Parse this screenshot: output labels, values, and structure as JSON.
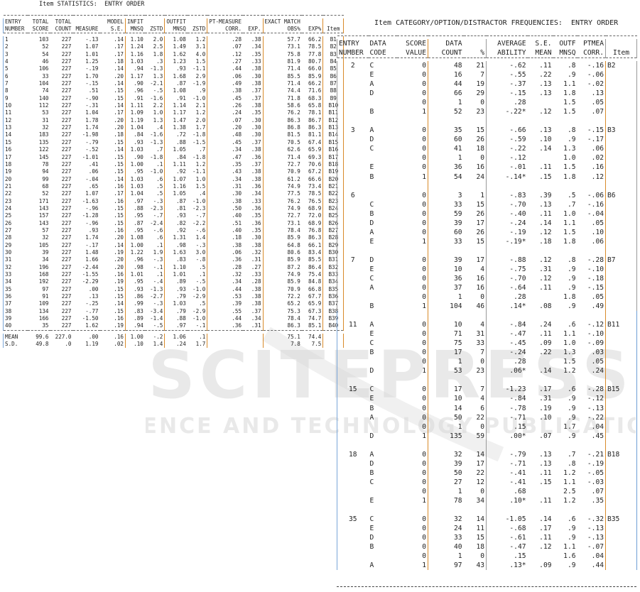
{
  "left": {
    "title": "Item STATISTICS:  ENTRY ORDER",
    "header1": [
      "ENTRY",
      "TOTAL",
      "TOTAL",
      "",
      "MODEL",
      "INFIT",
      "",
      "OUTFIT",
      "",
      "PT-MEASURE",
      "",
      "EXACT MATCH",
      "",
      ""
    ],
    "header2": [
      "NUMBER",
      "SCORE",
      "COUNT",
      "MEASURE",
      "S.E.",
      "MNSQ",
      "ZSTD",
      "MNSQ",
      "ZSTD",
      "CORR.",
      "EXP.",
      "OBS%",
      "EXP%",
      "Item"
    ],
    "rows": [
      [
        "1",
        "103",
        "227",
        "-.13",
        ".14",
        "1.10",
        "2.0",
        "1.08",
        "1.2",
        ".28",
        ".38",
        "57.7",
        "66.2",
        "B1"
      ],
      [
        "2",
        "52",
        "227",
        "1.07",
        ".17",
        "1.24",
        "2.5",
        "1.49",
        "3.1",
        ".07",
        ".34",
        "73.1",
        "78.5",
        "B2"
      ],
      [
        "3",
        "54",
        "227",
        "1.01",
        ".17",
        "1.16",
        "1.8",
        "1.62",
        "4.0",
        ".12",
        ".35",
        "75.8",
        "77.8",
        "B3"
      ],
      [
        "4",
        "46",
        "227",
        "1.25",
        ".18",
        "1.03",
        ".3",
        "1.23",
        "1.5",
        ".27",
        ".33",
        "81.9",
        "80.7",
        "B4"
      ],
      [
        "5",
        "106",
        "227",
        "-.19",
        ".14",
        ".94",
        "-1.3",
        ".93",
        "-1.1",
        ".44",
        ".38",
        "71.4",
        "66.0",
        "B5"
      ],
      [
        "6",
        "33",
        "227",
        "1.70",
        ".20",
        "1.17",
        "1.3",
        "1.68",
        "2.9",
        ".06",
        ".30",
        "85.5",
        "85.9",
        "B6"
      ],
      [
        "7",
        "104",
        "227",
        "-.15",
        ".14",
        ".90",
        "-2.1",
        ".87",
        "-1.9",
        ".49",
        ".38",
        "71.4",
        "66.2",
        "B7"
      ],
      [
        "8",
        "74",
        "227",
        ".51",
        ".15",
        ".96",
        "-.5",
        "1.08",
        ".9",
        ".38",
        ".37",
        "74.4",
        "71.6",
        "B8"
      ],
      [
        "9",
        "140",
        "227",
        "-.90",
        ".15",
        ".91",
        "-1.6",
        ".91",
        "-1.0",
        ".45",
        ".37",
        "71.8",
        "68.3",
        "B9"
      ],
      [
        "10",
        "112",
        "227",
        "-.31",
        ".14",
        "1.11",
        "2.2",
        "1.14",
        "2.1",
        ".26",
        ".38",
        "58.6",
        "65.8",
        "B10"
      ],
      [
        "11",
        "53",
        "227",
        "1.04",
        ".17",
        "1.09",
        "1.0",
        "1.17",
        "1.2",
        ".24",
        ".35",
        "76.2",
        "78.1",
        "B11"
      ],
      [
        "12",
        "31",
        "227",
        "1.78",
        ".20",
        "1.19",
        "1.3",
        "1.47",
        "2.0",
        ".07",
        ".30",
        "86.3",
        "86.7",
        "B12"
      ],
      [
        "13",
        "32",
        "227",
        "1.74",
        ".20",
        "1.04",
        ".4",
        "1.38",
        "1.7",
        ".20",
        ".30",
        "86.8",
        "86.3",
        "B13"
      ],
      [
        "14",
        "183",
        "227",
        "-1.98",
        ".18",
        ".84",
        "-1.6",
        ".72",
        "-1.8",
        ".48",
        ".30",
        "81.5",
        "81.1",
        "B14"
      ],
      [
        "15",
        "135",
        "227",
        "-.79",
        ".15",
        ".93",
        "-1.3",
        ".88",
        "-1.5",
        ".45",
        ".37",
        "70.5",
        "67.4",
        "B15"
      ],
      [
        "16",
        "122",
        "227",
        "-.52",
        ".14",
        "1.03",
        ".7",
        "1.05",
        ".7",
        ".34",
        ".38",
        "62.6",
        "65.9",
        "B16"
      ],
      [
        "17",
        "145",
        "227",
        "-1.01",
        ".15",
        ".90",
        "-1.8",
        ".84",
        "-1.8",
        ".47",
        ".36",
        "71.4",
        "69.3",
        "B17"
      ],
      [
        "18",
        "78",
        "227",
        ".41",
        ".15",
        "1.00",
        ".1",
        "1.11",
        "1.2",
        ".35",
        ".37",
        "72.7",
        "70.6",
        "B18"
      ],
      [
        "19",
        "94",
        "227",
        ".06",
        ".15",
        ".95",
        "-1.0",
        ".92",
        "-1.1",
        ".43",
        ".38",
        "70.9",
        "67.2",
        "B19"
      ],
      [
        "20",
        "99",
        "227",
        "-.04",
        ".14",
        "1.03",
        ".6",
        "1.07",
        "1.0",
        ".34",
        ".38",
        "61.2",
        "66.6",
        "B20"
      ],
      [
        "21",
        "68",
        "227",
        ".65",
        ".16",
        "1.03",
        ".5",
        "1.16",
        "1.5",
        ".31",
        ".36",
        "74.9",
        "73.4",
        "B21"
      ],
      [
        "22",
        "52",
        "227",
        "1.07",
        ".17",
        "1.04",
        ".5",
        "1.05",
        ".4",
        ".30",
        ".34",
        "77.5",
        "78.5",
        "B22"
      ],
      [
        "23",
        "171",
        "227",
        "-1.63",
        ".16",
        ".97",
        "-.3",
        ".87",
        "-1.0",
        ".38",
        ".33",
        "76.2",
        "76.5",
        "B23"
      ],
      [
        "24",
        "143",
        "227",
        "-.96",
        ".15",
        ".88",
        "-2.3",
        ".81",
        "-2.3",
        ".50",
        ".36",
        "74.9",
        "68.9",
        "B24"
      ],
      [
        "25",
        "157",
        "227",
        "-1.28",
        ".15",
        ".95",
        "-.7",
        ".93",
        "-.7",
        ".40",
        ".35",
        "72.7",
        "72.0",
        "B25"
      ],
      [
        "26",
        "143",
        "227",
        "-.96",
        ".15",
        ".87",
        "-2.4",
        ".82",
        "-2.2",
        ".51",
        ".36",
        "73.1",
        "68.9",
        "B26"
      ],
      [
        "27",
        "57",
        "227",
        ".93",
        ".16",
        ".95",
        "-.6",
        ".92",
        "-.6",
        ".40",
        ".35",
        "78.4",
        "76.8",
        "B27"
      ],
      [
        "28",
        "32",
        "227",
        "1.74",
        ".20",
        "1.08",
        ".6",
        "1.31",
        "1.4",
        ".18",
        ".30",
        "85.9",
        "86.3",
        "B28"
      ],
      [
        "29",
        "105",
        "227",
        "-.17",
        ".14",
        "1.00",
        ".1",
        ".98",
        "-.3",
        ".38",
        ".38",
        "64.8",
        "66.1",
        "B29"
      ],
      [
        "30",
        "39",
        "227",
        "1.48",
        ".19",
        "1.22",
        "1.9",
        "1.63",
        "3.0",
        ".06",
        ".32",
        "80.6",
        "83.4",
        "B30"
      ],
      [
        "31",
        "34",
        "227",
        "1.66",
        ".20",
        ".96",
        "-.3",
        ".83",
        "-.8",
        ".36",
        ".31",
        "85.9",
        "85.5",
        "B31"
      ],
      [
        "32",
        "196",
        "227",
        "-2.44",
        ".20",
        ".98",
        "-.1",
        "1.10",
        ".5",
        ".28",
        ".27",
        "87.2",
        "86.4",
        "B32"
      ],
      [
        "33",
        "168",
        "227",
        "-1.55",
        ".16",
        "1.01",
        ".1",
        "1.01",
        ".1",
        ".32",
        ".33",
        "74.9",
        "75.4",
        "B33"
      ],
      [
        "34",
        "192",
        "227",
        "-2.29",
        ".19",
        ".95",
        "-.4",
        ".89",
        "-.5",
        ".34",
        ".28",
        "85.9",
        "84.8",
        "B34"
      ],
      [
        "35",
        "97",
        "227",
        ".00",
        ".15",
        ".93",
        "-1.3",
        ".93",
        "-1.0",
        ".44",
        ".38",
        "70.9",
        "66.8",
        "B35"
      ],
      [
        "36",
        "91",
        "227",
        ".13",
        ".15",
        ".86",
        "-2.7",
        ".79",
        "-2.9",
        ".53",
        ".38",
        "72.2",
        "67.7",
        "B36"
      ],
      [
        "37",
        "109",
        "227",
        "-.25",
        ".14",
        ".99",
        "-.3",
        "1.03",
        ".5",
        ".39",
        ".38",
        "65.2",
        "65.9",
        "B37"
      ],
      [
        "38",
        "134",
        "227",
        "-.77",
        ".15",
        ".83",
        "-3.4",
        ".79",
        "-2.9",
        ".55",
        ".37",
        "75.3",
        "67.3",
        "B38"
      ],
      [
        "39",
        "166",
        "227",
        "-1.50",
        ".16",
        ".89",
        "-1.4",
        ".88",
        "-1.0",
        ".44",
        ".34",
        "78.4",
        "74.7",
        "B39"
      ],
      [
        "40",
        "35",
        "227",
        "1.62",
        ".19",
        ".94",
        "-.5",
        ".97",
        "-.1",
        ".36",
        ".31",
        "86.3",
        "85.1",
        "B40"
      ]
    ],
    "summary": [
      [
        "MEAN",
        "99.6",
        "227.0",
        ".00",
        ".16",
        "1.00",
        "-.2",
        "1.06",
        ".1",
        "",
        "",
        "75.1",
        "74.4",
        ""
      ],
      [
        "S.D.",
        "49.8",
        ".0",
        "1.19",
        ".02",
        ".10",
        "1.4",
        ".24",
        "1.7",
        "",
        "",
        "7.8",
        "7.5",
        ""
      ]
    ]
  },
  "right": {
    "title": "Item CATEGORY/OPTION/DISTRACTOR FREQUENCIES:  ENTRY ORDER",
    "header1": [
      "ENTRY",
      "DATA",
      "SCORE",
      "DATA",
      "",
      "AVERAGE",
      "S.E.",
      "OUTF",
      "PTMEA",
      ""
    ],
    "header2": [
      "NUMBER",
      "CODE",
      "VALUE",
      "COUNT",
      "%",
      "ABILITY",
      "MEAN",
      "MNSQ",
      "CORR.",
      "Item"
    ],
    "groups": [
      {
        "entry": "2",
        "item": "B2",
        "rows": [
          [
            "C",
            "0",
            "48",
            "21",
            "-.62",
            ".11",
            ".8",
            "-.16"
          ],
          [
            "E",
            "0",
            "16",
            "7",
            "-.55",
            ".22",
            ".9",
            "-.06"
          ],
          [
            "A",
            "0",
            "44",
            "19",
            "-.37",
            ".13",
            "1.1",
            "-.02"
          ],
          [
            "D",
            "0",
            "66",
            "29",
            "-.15",
            ".13",
            "1.8",
            ".13"
          ],
          [
            "",
            "0",
            "1",
            "0",
            ".28",
            "",
            "1.5",
            ".05"
          ],
          [
            "B",
            "1",
            "52",
            "23",
            "-.22*",
            ".12",
            "1.5",
            ".07"
          ]
        ]
      },
      {
        "entry": "3",
        "item": "B3",
        "rows": [
          [
            "A",
            "0",
            "35",
            "15",
            "-.66",
            ".13",
            ".8",
            "-.15"
          ],
          [
            "D",
            "0",
            "60",
            "26",
            "-.59",
            ".10",
            ".9",
            "-.17"
          ],
          [
            "C",
            "0",
            "41",
            "18",
            "-.22",
            ".14",
            "1.3",
            ".06"
          ],
          [
            "",
            "0",
            "1",
            "0",
            "-.12",
            "",
            "1.0",
            ".02"
          ],
          [
            "E",
            "0",
            "36",
            "16",
            "-.01",
            ".11",
            "1.5",
            ".16"
          ],
          [
            "B",
            "1",
            "54",
            "24",
            "-.14*",
            ".15",
            "1.8",
            ".12"
          ]
        ]
      },
      {
        "entry": "6",
        "item": "B6",
        "rows": [
          [
            "",
            "0",
            "3",
            "1",
            "-.83",
            ".39",
            ".5",
            "-.06"
          ],
          [
            "C",
            "0",
            "33",
            "15",
            "-.70",
            ".13",
            ".7",
            "-.16"
          ],
          [
            "B",
            "0",
            "59",
            "26",
            "-.40",
            ".11",
            "1.0",
            "-.04"
          ],
          [
            "D",
            "0",
            "39",
            "17",
            "-.24",
            ".14",
            "1.1",
            ".05"
          ],
          [
            "A",
            "0",
            "60",
            "26",
            "-.19",
            ".12",
            "1.5",
            ".10"
          ],
          [
            "E",
            "1",
            "33",
            "15",
            "-.19*",
            ".18",
            "1.8",
            ".06"
          ]
        ]
      },
      {
        "entry": "7",
        "item": "B7",
        "rows": [
          [
            "D",
            "0",
            "39",
            "17",
            "-.88",
            ".12",
            ".8",
            "-.28"
          ],
          [
            "E",
            "0",
            "10",
            "4",
            "-.75",
            ".31",
            ".9",
            "-.10"
          ],
          [
            "C",
            "0",
            "36",
            "16",
            "-.70",
            ".12",
            ".9",
            "-.18"
          ],
          [
            "A",
            "0",
            "37",
            "16",
            "-.64",
            ".11",
            ".9",
            "-.15"
          ],
          [
            "",
            "0",
            "1",
            "0",
            ".28",
            "",
            "1.8",
            ".05"
          ],
          [
            "B",
            "1",
            "104",
            "46",
            ".14*",
            ".08",
            ".9",
            ".49"
          ]
        ]
      },
      {
        "entry": "11",
        "item": "B11",
        "rows": [
          [
            "A",
            "0",
            "10",
            "4",
            "-.84",
            ".24",
            ".6",
            "-.12"
          ],
          [
            "E",
            "0",
            "71",
            "31",
            "-.47",
            ".11",
            "1.1",
            "-.10"
          ],
          [
            "C",
            "0",
            "75",
            "33",
            "-.45",
            ".09",
            "1.0",
            "-.09"
          ],
          [
            "B",
            "0",
            "17",
            "7",
            "-.24",
            ".22",
            "1.3",
            ".03"
          ],
          [
            "",
            "0",
            "1",
            "0",
            ".28",
            "",
            "1.5",
            ".05"
          ],
          [
            "D",
            "1",
            "53",
            "23",
            ".06*",
            ".14",
            "1.2",
            ".24"
          ]
        ]
      },
      {
        "entry": "15",
        "item": "B15",
        "rows": [
          [
            "C",
            "0",
            "17",
            "7",
            "-1.23",
            ".17",
            ".6",
            "-.28"
          ],
          [
            "E",
            "0",
            "10",
            "4",
            "-.84",
            ".31",
            ".9",
            "-.12"
          ],
          [
            "B",
            "0",
            "14",
            "6",
            "-.78",
            ".19",
            ".9",
            "-.13"
          ],
          [
            "A",
            "0",
            "50",
            "22",
            "-.71",
            ".10",
            ".9",
            "-.22"
          ],
          [
            "",
            "0",
            "1",
            "0",
            ".15",
            "",
            "1.7",
            ".04"
          ],
          [
            "D",
            "1",
            "135",
            "59",
            ".00*",
            ".07",
            ".9",
            ".45"
          ]
        ]
      },
      {
        "entry": "18",
        "item": "B18",
        "rows": [
          [
            "A",
            "0",
            "32",
            "14",
            "-.79",
            ".13",
            ".7",
            "-.21"
          ],
          [
            "D",
            "0",
            "39",
            "17",
            "-.71",
            ".13",
            ".8",
            "-.19"
          ],
          [
            "B",
            "0",
            "50",
            "22",
            "-.41",
            ".11",
            "1.2",
            "-.05"
          ],
          [
            "C",
            "0",
            "27",
            "12",
            "-.41",
            ".15",
            "1.1",
            "-.03"
          ],
          [
            "",
            "0",
            "1",
            "0",
            ".68",
            "",
            "2.5",
            ".07"
          ],
          [
            "E",
            "1",
            "78",
            "34",
            ".10*",
            ".11",
            "1.2",
            ".35"
          ]
        ]
      },
      {
        "entry": "35",
        "item": "B35",
        "rows": [
          [
            "C",
            "0",
            "32",
            "14",
            "-1.05",
            ".14",
            ".6",
            "-.32"
          ],
          [
            "E",
            "0",
            "24",
            "11",
            "-.68",
            ".17",
            ".9",
            "-.13"
          ],
          [
            "D",
            "0",
            "33",
            "15",
            "-.61",
            ".11",
            ".9",
            "-.13"
          ],
          [
            "B",
            "0",
            "40",
            "18",
            "-.47",
            ".12",
            "1.1",
            "-.07"
          ],
          [
            "",
            "0",
            "1",
            "0",
            ".15",
            "",
            "1.6",
            ".04"
          ],
          [
            "A",
            "1",
            "97",
            "43",
            ".13*",
            ".09",
            ".9",
            ".44"
          ]
        ]
      }
    ]
  },
  "watermark": {
    "line1": "SCITEPRESS",
    "line2": "SCIENCE AND TECHNOLOGY PUBLICATIONS",
    "color": "#d8d8d8"
  },
  "colors": {
    "blue_rule": "#6d9ed6",
    "orange_rule": "#d88a2a"
  }
}
